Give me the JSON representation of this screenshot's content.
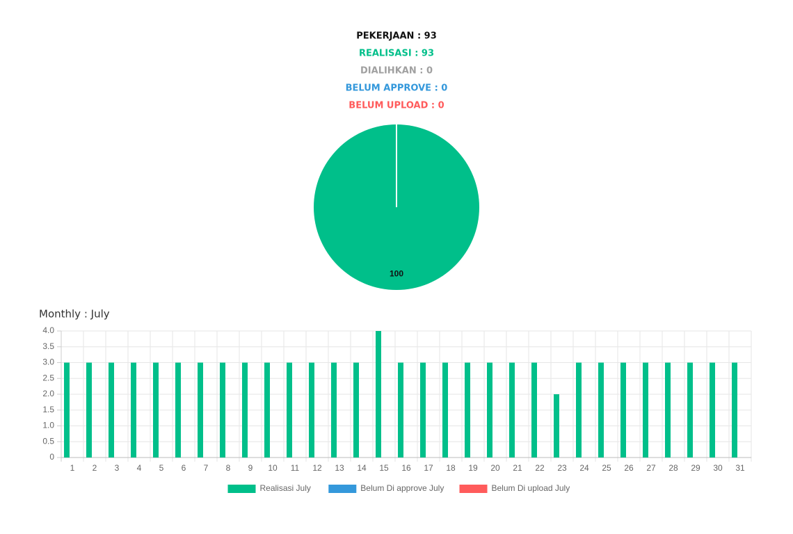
{
  "summary": [
    {
      "text": "PEKERJAAN : 93",
      "color": "#111111"
    },
    {
      "text": "REALISASI : 93",
      "color": "#00bf8a"
    },
    {
      "text": "DIALIHKAN : 0",
      "color": "#a0a0a0"
    },
    {
      "text": "BELUM APPROVE : 0",
      "color": "#3498db"
    },
    {
      "text": "BELUM UPLOAD : 0",
      "color": "#ff5b5b"
    }
  ],
  "chart_data": [
    {
      "type": "pie",
      "values": [
        100
      ],
      "colors": [
        "#00bf8a"
      ]
    },
    {
      "type": "bar",
      "title": "Monthly : July",
      "categories": [
        "1",
        "2",
        "3",
        "4",
        "5",
        "6",
        "7",
        "8",
        "9",
        "10",
        "11",
        "12",
        "13",
        "14",
        "15",
        "16",
        "17",
        "18",
        "19",
        "20",
        "21",
        "22",
        "23",
        "24",
        "25",
        "26",
        "27",
        "28",
        "29",
        "30",
        "31"
      ],
      "series": [
        {
          "name": "Realisasi July",
          "color": "#00bf8a",
          "values": [
            3,
            3,
            3,
            3,
            3,
            3,
            3,
            3,
            3,
            3,
            3,
            3,
            3,
            3,
            4,
            3,
            3,
            3,
            3,
            3,
            3,
            3,
            2,
            3,
            3,
            3,
            3,
            3,
            3,
            3,
            3
          ]
        },
        {
          "name": "Belum Di approve July",
          "color": "#3498db",
          "values": [
            0,
            0,
            0,
            0,
            0,
            0,
            0,
            0,
            0,
            0,
            0,
            0,
            0,
            0,
            0,
            0,
            0,
            0,
            0,
            0,
            0,
            0,
            0,
            0,
            0,
            0,
            0,
            0,
            0,
            0,
            0
          ]
        },
        {
          "name": "Belum Di upload July",
          "color": "#ff5b5b",
          "values": [
            0,
            0,
            0,
            0,
            0,
            0,
            0,
            0,
            0,
            0,
            0,
            0,
            0,
            0,
            0,
            0,
            0,
            0,
            0,
            0,
            0,
            0,
            0,
            0,
            0,
            0,
            0,
            0,
            0,
            0,
            0
          ]
        }
      ],
      "ylim": [
        0,
        4
      ],
      "yticks": [
        0,
        0.5,
        {
          "value": 1,
          "label": "1.0"
        },
        1.5,
        {
          "value": 2,
          "label": "2.0"
        },
        2.5,
        {
          "value": 3,
          "label": "3.0"
        },
        3.5,
        {
          "value": 4,
          "label": "4.0"
        }
      ],
      "grid": true,
      "legend": "bottom"
    }
  ]
}
